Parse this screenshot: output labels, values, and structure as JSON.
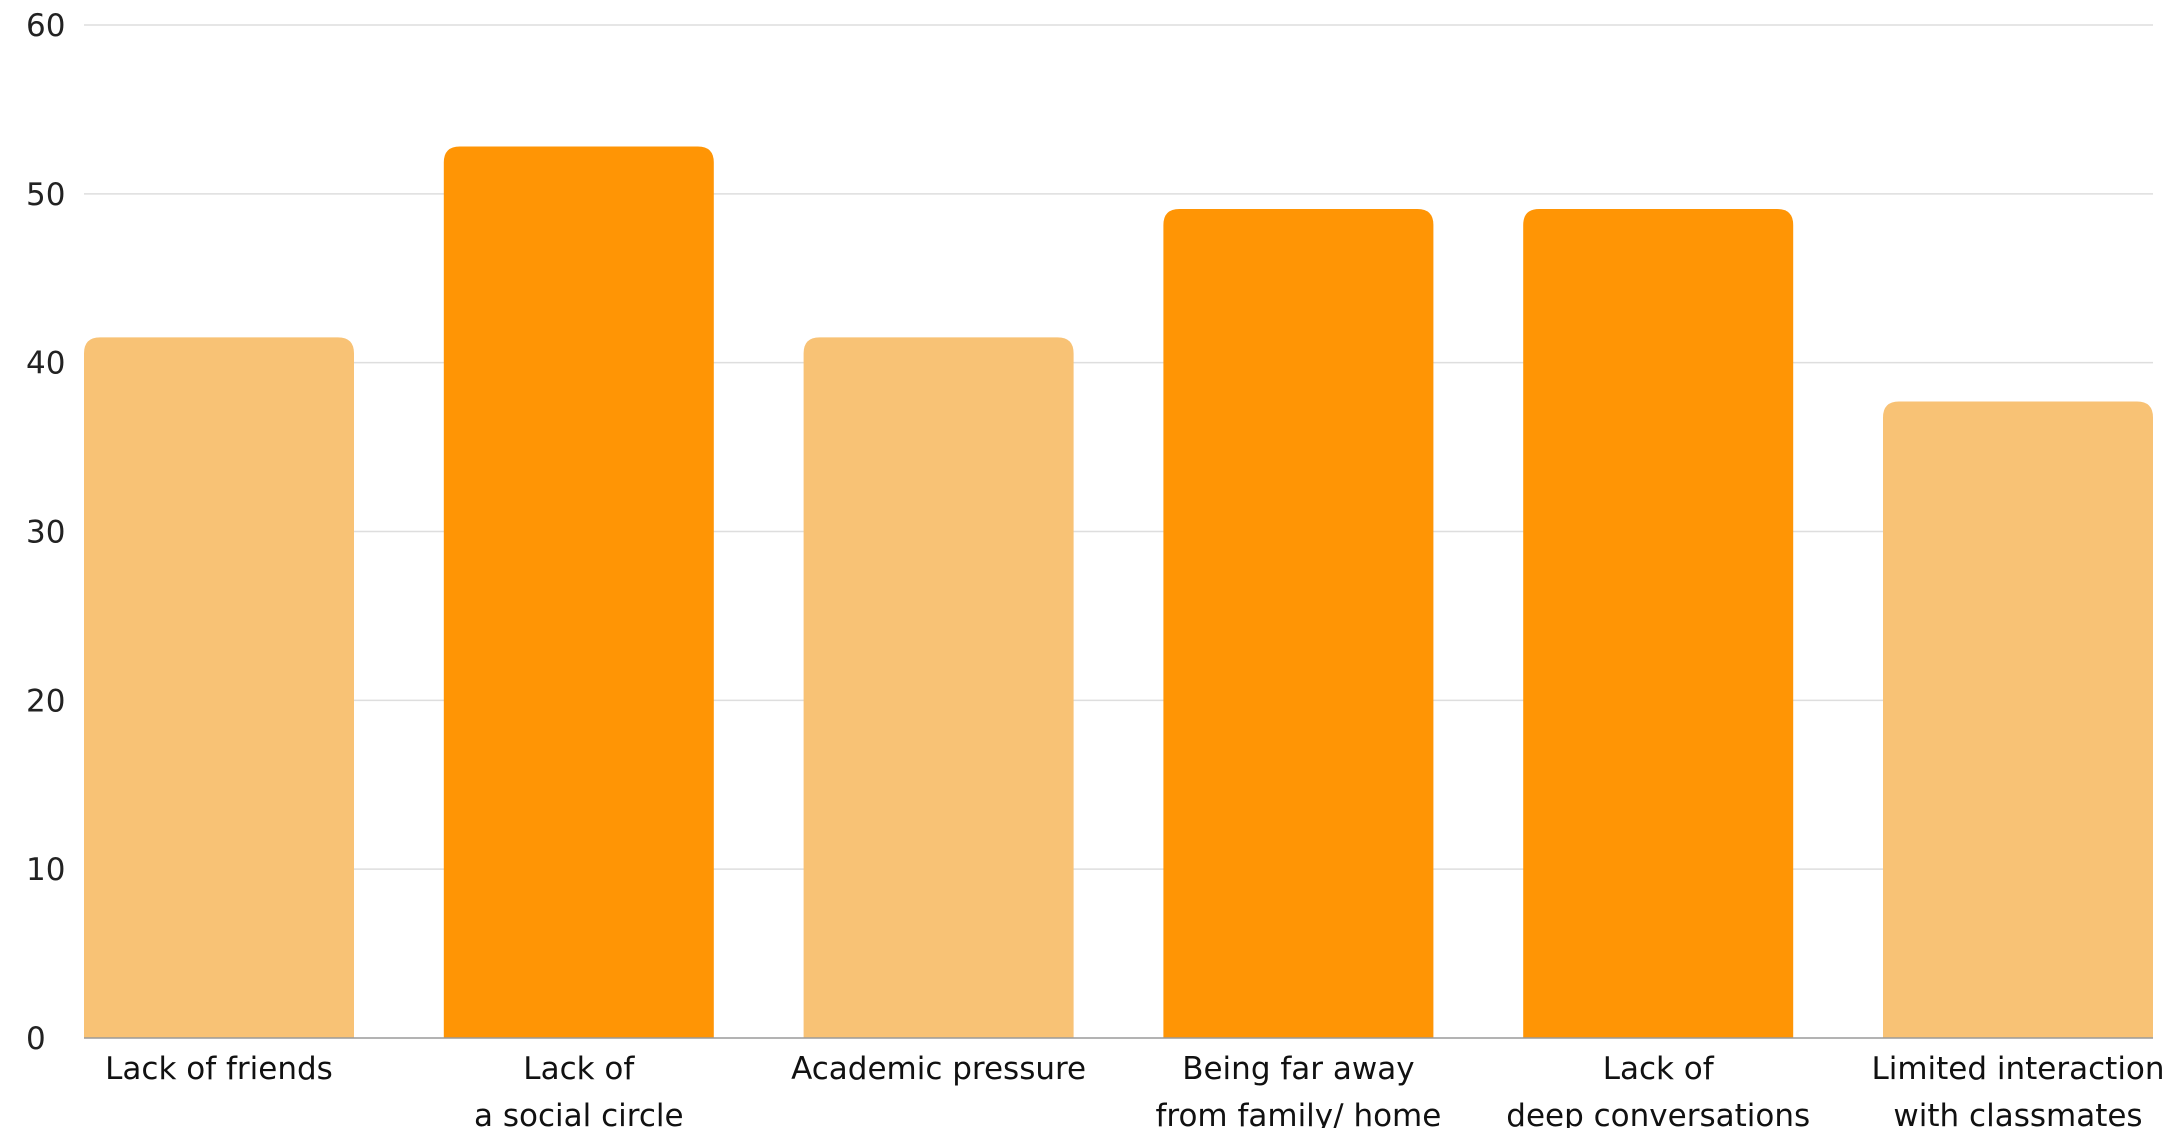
{
  "chart_data": {
    "type": "bar",
    "title": "",
    "xlabel": "",
    "ylabel": "",
    "ylim": [
      0,
      60
    ],
    "yticks": [
      0,
      10,
      20,
      30,
      40,
      50,
      60
    ],
    "grid": true,
    "legend": "none",
    "categories": [
      [
        "Lack of friends"
      ],
      [
        "Lack of",
        "a social circle"
      ],
      [
        "Academic pressure"
      ],
      [
        "Being far away",
        "from family/ home"
      ],
      [
        "Lack of",
        "deep conversations"
      ],
      [
        "Limited interaction",
        "with classmates"
      ]
    ],
    "values": [
      41.5,
      52.8,
      41.5,
      49.1,
      49.1,
      37.7
    ],
    "colors": [
      "#f8c275",
      "#ff9505",
      "#f8c275",
      "#ff9505",
      "#ff9505",
      "#f8c275"
    ]
  }
}
